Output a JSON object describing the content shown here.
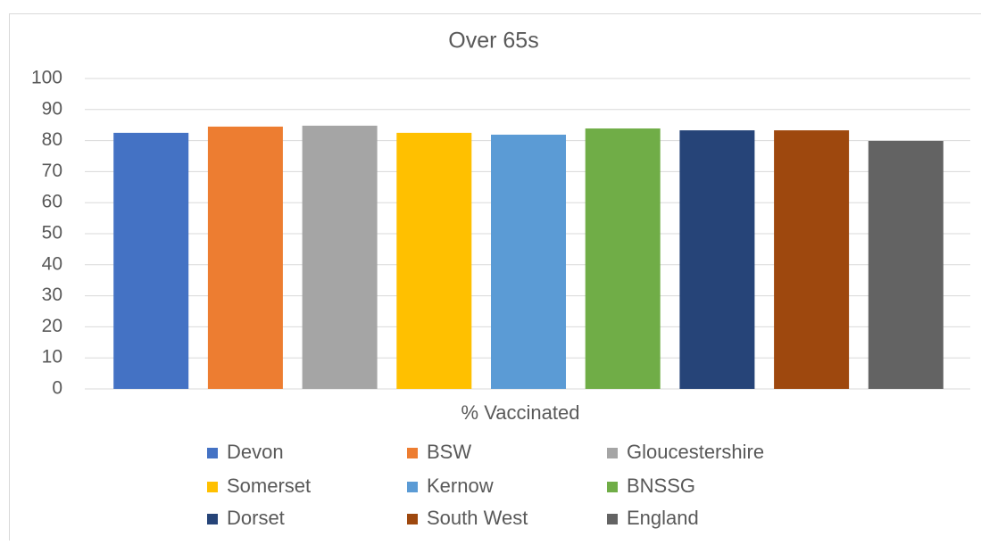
{
  "chart_data": {
    "type": "bar",
    "title": "Over 65s",
    "categories": [
      "% Vaccinated"
    ],
    "series": [
      {
        "name": "Devon",
        "color": "#4472c4",
        "values": [
          82.5
        ]
      },
      {
        "name": "BSW",
        "color": "#ed7d31",
        "values": [
          84.5
        ]
      },
      {
        "name": "Gloucestershire",
        "color": "#a5a5a5",
        "values": [
          84.8
        ]
      },
      {
        "name": "Somerset",
        "color": "#ffc000",
        "values": [
          82.5
        ]
      },
      {
        "name": "Kernow",
        "color": "#5b9bd5",
        "values": [
          81.9
        ]
      },
      {
        "name": "BNSSG",
        "color": "#70ad47",
        "values": [
          83.9
        ]
      },
      {
        "name": "Dorset",
        "color": "#264478",
        "values": [
          83.3
        ]
      },
      {
        "name": "South West",
        "color": "#9e480e",
        "values": [
          83.3
        ]
      },
      {
        "name": "England",
        "color": "#636363",
        "values": [
          79.9
        ]
      }
    ],
    "ylim": [
      0,
      100
    ],
    "yticks": [
      0,
      10,
      20,
      30,
      40,
      50,
      60,
      70,
      80,
      90,
      100
    ],
    "grid": true,
    "legend": "bottom"
  }
}
